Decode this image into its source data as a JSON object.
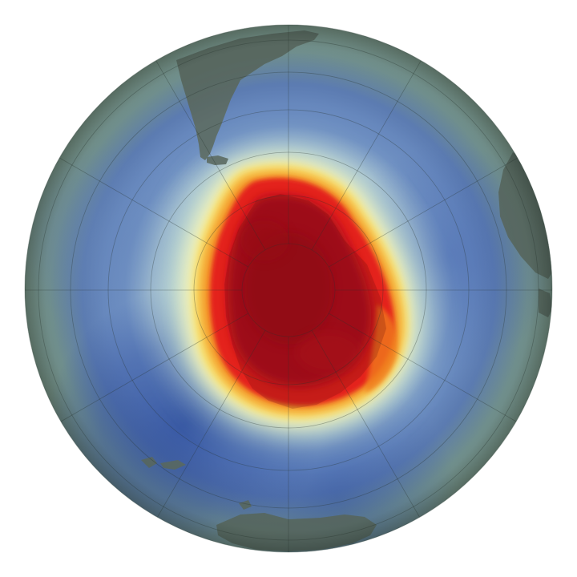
{
  "map": {
    "projection": "orthographic-south-polar",
    "background": "#ffffff",
    "palette": {
      "ocean_low_edge": "#7f998a",
      "deep_blue": "#3a5da8",
      "mid_blue": "#6b8cc0",
      "pale_cyan": "#bcd9d4",
      "cream": "#f6f3b4",
      "yellow": "#f7e06a",
      "orange": "#f08a24",
      "red": "#e01b1b",
      "dark_red": "#a80d12",
      "land": "#5f6f66",
      "graticule": "#28352e"
    }
  }
}
